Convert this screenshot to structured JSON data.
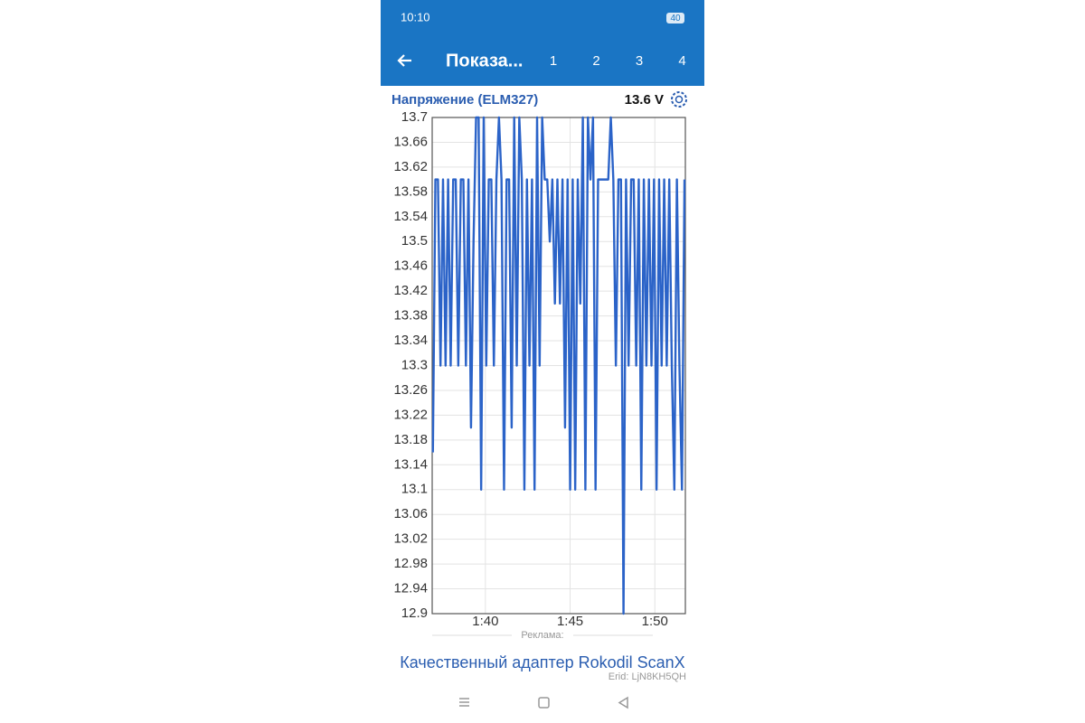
{
  "status_bar": {
    "time": "10:10",
    "battery": "40"
  },
  "app_bar": {
    "title": "Показа...",
    "tabs": [
      "1",
      "2",
      "3",
      "4"
    ]
  },
  "chart_data": {
    "type": "line",
    "title": "Напряжение (ELM327)",
    "current_value": "13.6 V",
    "x": [
      96.9,
      97.05,
      97.2,
      97.35,
      97.5,
      97.65,
      97.8,
      97.95,
      98.1,
      98.25,
      98.4,
      98.55,
      98.7,
      98.85,
      99.0,
      99.15,
      99.3,
      99.45,
      99.6,
      99.75,
      99.9,
      100.05,
      100.2,
      100.35,
      100.5,
      100.65,
      100.8,
      100.95,
      101.1,
      101.25,
      101.4,
      101.55,
      101.7,
      101.85,
      102.0,
      102.15,
      102.3,
      102.45,
      102.6,
      102.75,
      102.9,
      103.05,
      103.2,
      103.35,
      103.5,
      103.65,
      103.8,
      103.95,
      104.1,
      104.25,
      104.4,
      104.55,
      104.7,
      104.85,
      105.0,
      105.15,
      105.3,
      105.45,
      105.6,
      105.75,
      105.9,
      106.05,
      106.2,
      106.35,
      106.5,
      106.65,
      106.8,
      106.95,
      107.1,
      107.25,
      107.4,
      107.55,
      107.7,
      107.85,
      108.0,
      108.15,
      108.3,
      108.45,
      108.6,
      108.75,
      108.9,
      109.05,
      109.2,
      109.35,
      109.5,
      109.65,
      109.8,
      109.95,
      110.1,
      110.25,
      110.4,
      110.55,
      110.7,
      110.85,
      111.0,
      111.15,
      111.3,
      111.45,
      111.6,
      111.75
    ],
    "series": [
      {
        "color": "#2b63c8",
        "values": [
          13.16,
          13.6,
          13.6,
          13.3,
          13.6,
          13.3,
          13.6,
          13.3,
          13.6,
          13.6,
          13.3,
          13.6,
          13.6,
          13.3,
          13.6,
          13.2,
          13.5,
          13.7,
          13.7,
          13.1,
          13.7,
          13.3,
          13.6,
          13.6,
          13.3,
          13.6,
          13.7,
          13.6,
          13.1,
          13.6,
          13.6,
          13.2,
          13.7,
          13.3,
          13.7,
          13.6,
          13.1,
          13.6,
          13.3,
          13.6,
          13.1,
          13.7,
          13.3,
          13.7,
          13.6,
          13.6,
          13.5,
          13.6,
          13.4,
          13.6,
          13.4,
          13.6,
          13.2,
          13.6,
          13.1,
          13.6,
          13.1,
          13.6,
          13.4,
          13.7,
          13.1,
          13.7,
          13.6,
          13.7,
          13.1,
          13.6,
          13.6,
          13.6,
          13.6,
          13.6,
          13.7,
          13.6,
          13.3,
          13.6,
          13.6,
          12.9,
          13.6,
          13.3,
          13.6,
          13.6,
          13.3,
          13.6,
          13.1,
          13.6,
          13.3,
          13.6,
          13.3,
          13.6,
          13.1,
          13.6,
          13.3,
          13.6,
          13.3,
          13.6,
          13.3,
          13.1,
          13.6,
          13.3,
          13.1,
          13.6
        ]
      }
    ],
    "xlim": [
      96.86,
      111.8
    ],
    "xticks": [
      {
        "value": 100,
        "label": "1:40"
      },
      {
        "value": 105,
        "label": "1:45"
      },
      {
        "value": 110,
        "label": "1:50"
      }
    ],
    "ylim": [
      12.9,
      13.7
    ],
    "yticks": [
      13.7,
      13.66,
      13.62,
      13.58,
      13.54,
      13.5,
      13.46,
      13.42,
      13.38,
      13.34,
      13.3,
      13.26,
      13.22,
      13.18,
      13.14,
      13.1,
      13.06,
      13.02,
      12.98,
      12.94,
      12.9
    ],
    "grid": true
  },
  "ad": {
    "label": "Реклама:",
    "text": "Качественный адаптер Rokodil ScanX",
    "erid": "Erid: LjN8KH5QH"
  }
}
